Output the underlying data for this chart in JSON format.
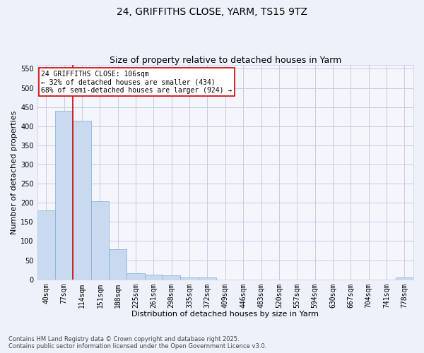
{
  "title": "24, GRIFFITHS CLOSE, YARM, TS15 9TZ",
  "subtitle": "Size of property relative to detached houses in Yarm",
  "xlabel": "Distribution of detached houses by size in Yarm",
  "ylabel": "Number of detached properties",
  "categories": [
    "40sqm",
    "77sqm",
    "114sqm",
    "151sqm",
    "188sqm",
    "225sqm",
    "261sqm",
    "298sqm",
    "335sqm",
    "372sqm",
    "409sqm",
    "446sqm",
    "483sqm",
    "520sqm",
    "557sqm",
    "594sqm",
    "630sqm",
    "667sqm",
    "704sqm",
    "741sqm",
    "778sqm"
  ],
  "values": [
    180,
    440,
    415,
    204,
    78,
    17,
    13,
    11,
    5,
    5,
    0,
    0,
    0,
    0,
    0,
    0,
    0,
    0,
    0,
    0,
    5
  ],
  "bar_color": "#c9d9f0",
  "bar_edge_color": "#7dadd4",
  "vline_color": "#cc0000",
  "vline_pos": 1.5,
  "annotation_text": "24 GRIFFITHS CLOSE: 106sqm\n← 32% of detached houses are smaller (434)\n68% of semi-detached houses are larger (924) →",
  "annotation_box_color": "#ffffff",
  "annotation_box_edge": "#cc0000",
  "ylim": [
    0,
    560
  ],
  "yticks": [
    0,
    50,
    100,
    150,
    200,
    250,
    300,
    350,
    400,
    450,
    500,
    550
  ],
  "footer": "Contains HM Land Registry data © Crown copyright and database right 2025.\nContains public sector information licensed under the Open Government Licence v3.0.",
  "bg_color": "#edf1fa",
  "plot_bg_color": "#f4f6fc",
  "grid_color": "#c5cce6",
  "title_fontsize": 10,
  "subtitle_fontsize": 9,
  "xlabel_fontsize": 8,
  "ylabel_fontsize": 8,
  "tick_fontsize": 7,
  "footer_fontsize": 6,
  "annotation_fontsize": 7
}
